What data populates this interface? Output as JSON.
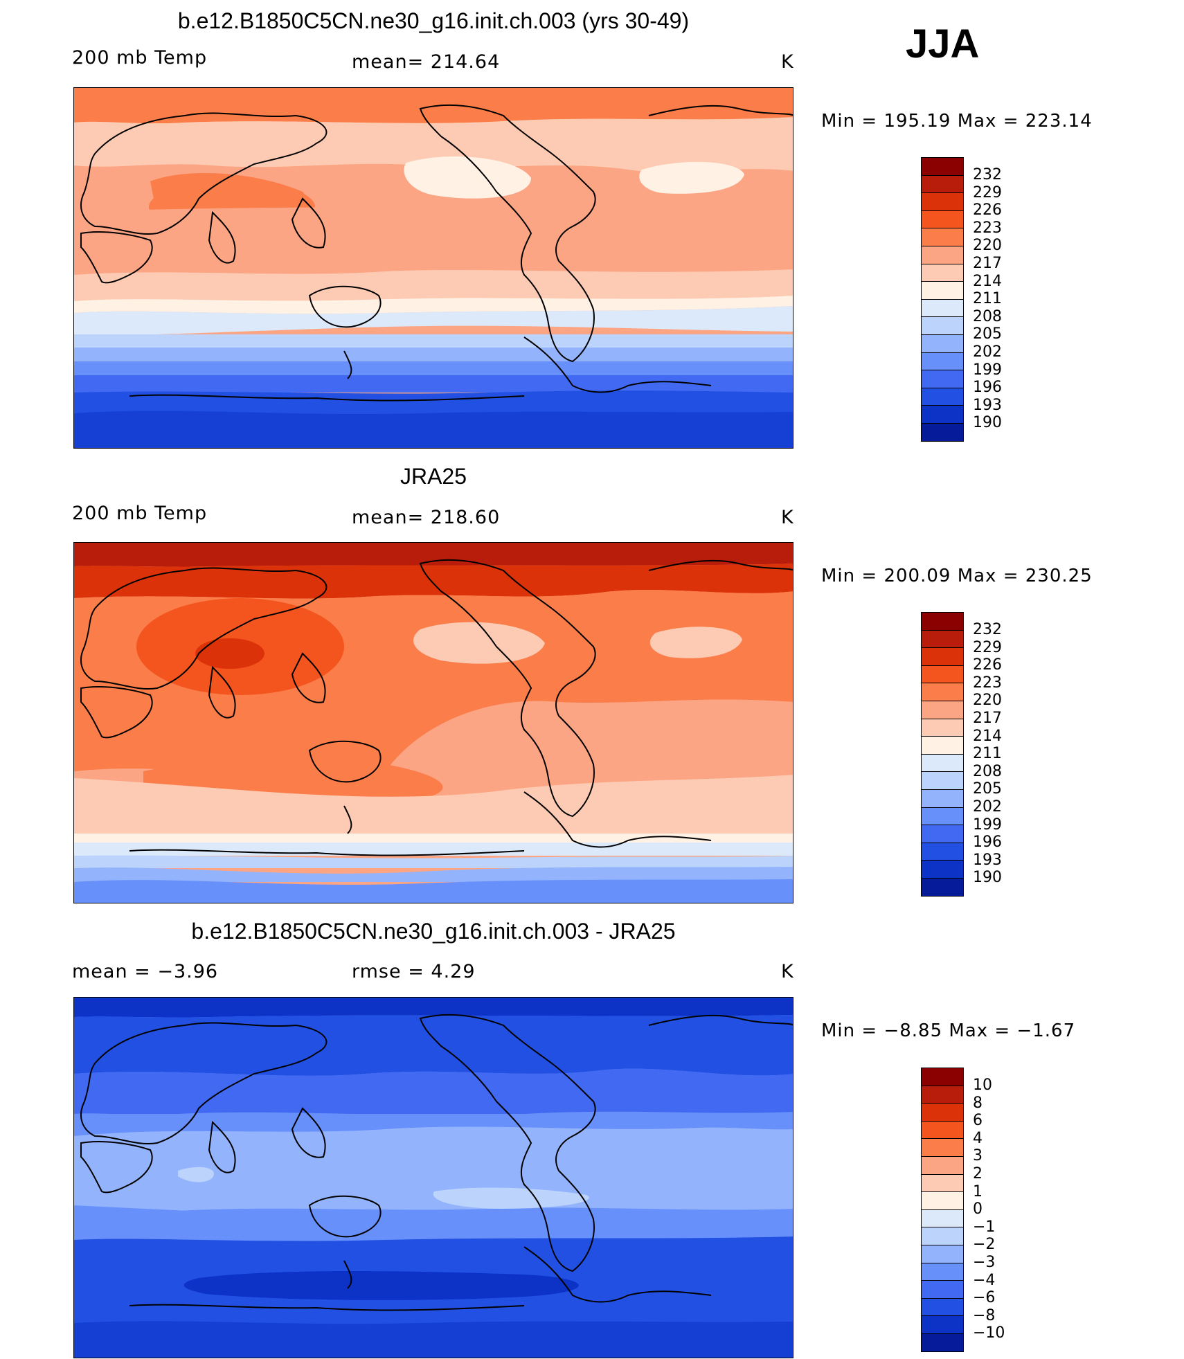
{
  "season": "JJA",
  "panels": [
    {
      "id": "model",
      "title": "b.e12.B1850C5CN.ne30_g16.init.ch.003 (yrs 30-49)",
      "left_label": "200 mb Temp",
      "center_label": "mean=  214.64",
      "units": "K",
      "minmax": "Min  =  195.19  Max  =  223.14"
    },
    {
      "id": "obs",
      "title": "JRA25",
      "left_label": "200 mb Temp",
      "center_label": "mean=  218.60",
      "units": "K",
      "minmax": "Min  =  200.09  Max  =  230.25"
    },
    {
      "id": "diff",
      "title": "b.e12.B1850C5CN.ne30_g16.init.ch.003 - JRA25",
      "left_label": "mean  =     −3.96",
      "center_label": "rmse  =      4.29",
      "units": "K",
      "minmax": "Min  =    −8.85  Max  =    −1.67"
    }
  ],
  "colorbars": {
    "temperature": {
      "colors": [
        "#8b0000",
        "#b81c0a",
        "#dc3209",
        "#f4541e",
        "#fa7d4a",
        "#fca584",
        "#fdcbb3",
        "#fff1e4",
        "#dbe9fb",
        "#bcd3fc",
        "#93b4fc",
        "#6890fb",
        "#4169f2",
        "#2150e3",
        "#0c33c6",
        "#051b9a"
      ],
      "labels": [
        "232",
        "229",
        "226",
        "223",
        "220",
        "217",
        "214",
        "211",
        "208",
        "205",
        "202",
        "199",
        "196",
        "193",
        "190"
      ]
    },
    "difference": {
      "colors": [
        "#8b0000",
        "#b81c0a",
        "#dc3209",
        "#f4541e",
        "#fa7d4a",
        "#fca584",
        "#fdcbb3",
        "#fff1e4",
        "#dbe9fb",
        "#bcd3fc",
        "#93b4fc",
        "#6890fb",
        "#4169f2",
        "#2150e3",
        "#0c33c6",
        "#051b9a"
      ],
      "labels": [
        "10",
        "8",
        "6",
        "4",
        "3",
        "2",
        "1",
        "0",
        "−1",
        "−2",
        "−3",
        "−4",
        "−6",
        "−8",
        "−10"
      ]
    }
  }
}
